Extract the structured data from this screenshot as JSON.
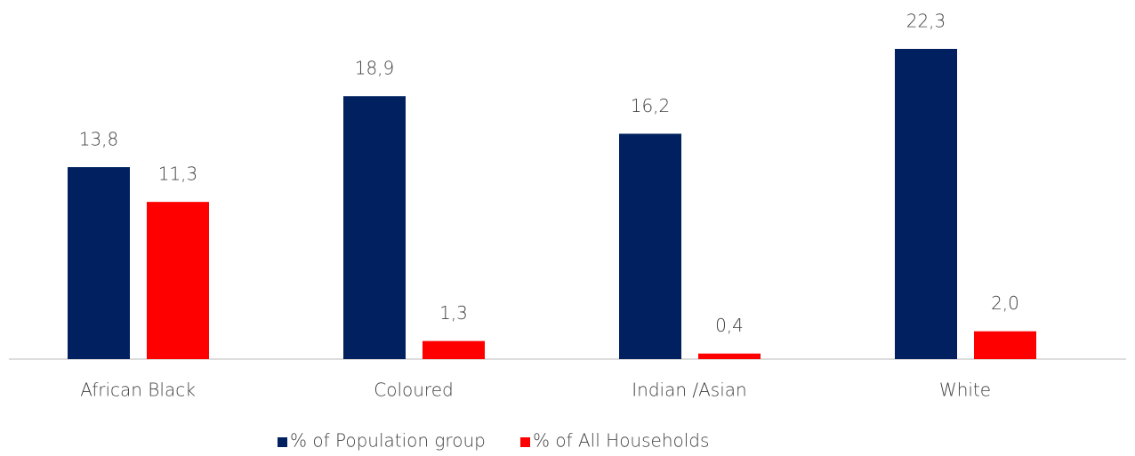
{
  "chart_data": {
    "type": "bar",
    "categories": [
      "African Black",
      "Coloured",
      "Indian /Asian",
      "White"
    ],
    "series": [
      {
        "name": "% of Population group",
        "color": "#002060",
        "values": [
          13.8,
          18.9,
          16.2,
          22.3
        ],
        "value_labels": [
          "13,8",
          "18,9",
          "16,2",
          "22,3"
        ]
      },
      {
        "name": "% of All Households",
        "color": "#ff0000",
        "values": [
          11.3,
          1.3,
          0.4,
          2.0
        ],
        "value_labels": [
          "11,3",
          "1,3",
          "0,4",
          "2,0"
        ]
      }
    ],
    "legend": "bottom"
  }
}
